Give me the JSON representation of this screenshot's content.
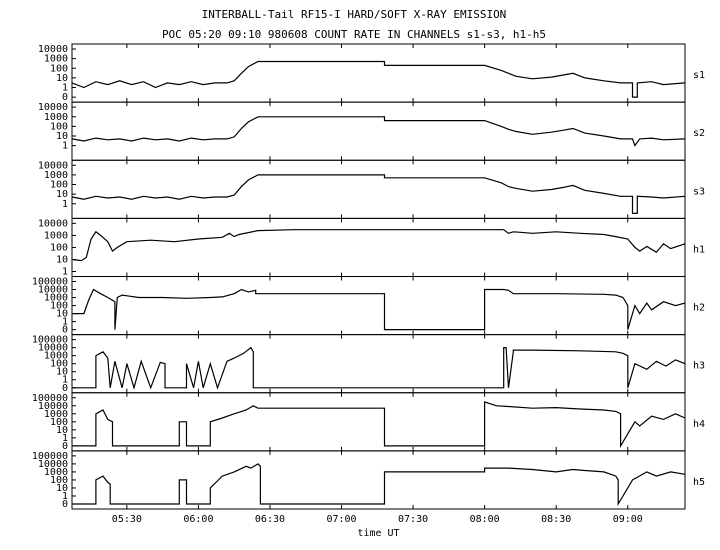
{
  "chart_data": [
    {
      "type": "line",
      "title": "INTERBALL-Tail RF15-I HARD/SOFT X-RAY EMISSION",
      "subtitle": "POC 05:20 09:10 980608  COUNT RATE IN CHANNELS s1-s3, h1-h5",
      "log_scale": true,
      "xlim": [
        "05:07",
        "09:24"
      ],
      "ylim": [
        0,
        10000
      ],
      "yticks": [
        0,
        1,
        10,
        100,
        1000,
        10000
      ],
      "x": [
        "05:07",
        "05:12",
        "05:17",
        "05:22",
        "05:27",
        "05:32",
        "05:37",
        "05:42",
        "05:47",
        "05:52",
        "05:57",
        "06:02",
        "06:07",
        "06:12",
        "06:15",
        "06:18",
        "06:21",
        "06:25",
        "07:18",
        "07:18",
        "08:00",
        "08:07",
        "08:10",
        "08:13",
        "08:20",
        "08:28",
        "08:33",
        "08:37",
        "08:42",
        "08:50",
        "08:57",
        "09:02",
        "09:02",
        "09:04",
        "09:04",
        "09:10",
        "09:15",
        "09:24"
      ],
      "series": [
        {
          "name": "s1",
          "color": "#000000",
          "values": [
            3,
            1,
            4,
            2,
            5,
            2,
            4,
            1,
            3,
            2,
            4,
            2,
            3,
            3,
            5,
            30,
            150,
            500,
            500,
            200,
            200,
            60,
            30,
            15,
            8,
            12,
            20,
            30,
            10,
            5,
            3,
            3,
            0,
            0,
            3,
            4,
            2,
            3
          ]
        }
      ]
    },
    {
      "type": "line",
      "log_scale": true,
      "xlim": [
        "05:07",
        "09:24"
      ],
      "ylim": [
        0,
        10000
      ],
      "yticks": [
        1,
        10,
        100,
        1000,
        10000
      ],
      "x": [
        "05:07",
        "05:12",
        "05:17",
        "05:22",
        "05:27",
        "05:32",
        "05:37",
        "05:42",
        "05:47",
        "05:52",
        "05:57",
        "06:02",
        "06:07",
        "06:12",
        "06:15",
        "06:18",
        "06:21",
        "06:25",
        "07:18",
        "07:18",
        "08:00",
        "08:07",
        "08:10",
        "08:13",
        "08:20",
        "08:28",
        "08:33",
        "08:37",
        "08:42",
        "08:50",
        "08:57",
        "09:02",
        "09:03",
        "09:05",
        "09:10",
        "09:15",
        "09:24"
      ],
      "series": [
        {
          "name": "s2",
          "color": "#000000",
          "values": [
            5,
            3,
            6,
            4,
            5,
            3,
            6,
            4,
            5,
            3,
            6,
            4,
            5,
            5,
            8,
            60,
            300,
            1000,
            1000,
            400,
            400,
            100,
            50,
            30,
            15,
            25,
            40,
            60,
            20,
            10,
            5,
            5,
            1,
            5,
            6,
            4,
            5
          ]
        }
      ]
    },
    {
      "type": "line",
      "log_scale": true,
      "xlim": [
        "05:07",
        "09:24"
      ],
      "ylim": [
        0,
        10000
      ],
      "yticks": [
        1,
        10,
        100,
        1000,
        10000
      ],
      "x": [
        "05:07",
        "05:12",
        "05:17",
        "05:22",
        "05:27",
        "05:32",
        "05:37",
        "05:42",
        "05:47",
        "05:52",
        "05:57",
        "06:02",
        "06:07",
        "06:12",
        "06:15",
        "06:18",
        "06:21",
        "06:25",
        "07:18",
        "07:18",
        "08:00",
        "08:07",
        "08:10",
        "08:13",
        "08:20",
        "08:28",
        "08:33",
        "08:37",
        "08:42",
        "08:50",
        "08:57",
        "09:02",
        "09:02",
        "09:04",
        "09:04",
        "09:10",
        "09:15",
        "09:24"
      ],
      "series": [
        {
          "name": "s3",
          "color": "#000000",
          "values": [
            5,
            3,
            6,
            4,
            5,
            3,
            6,
            4,
            5,
            3,
            6,
            4,
            5,
            5,
            8,
            60,
            300,
            1000,
            1000,
            500,
            500,
            150,
            60,
            40,
            20,
            30,
            50,
            80,
            25,
            12,
            6,
            6,
            0,
            0,
            6,
            5,
            4,
            6
          ]
        }
      ]
    },
    {
      "type": "line",
      "log_scale": true,
      "xlim": [
        "05:07",
        "09:24"
      ],
      "ylim": [
        1,
        10000
      ],
      "yticks": [
        1,
        10,
        100,
        1000,
        10000
      ],
      "x": [
        "05:07",
        "05:11",
        "05:13",
        "05:15",
        "05:17",
        "05:19",
        "05:22",
        "05:24",
        "05:26",
        "05:30",
        "05:40",
        "05:50",
        "06:00",
        "06:10",
        "06:13",
        "06:15",
        "06:17",
        "06:25",
        "06:40",
        "07:00",
        "07:30",
        "08:00",
        "08:08",
        "08:10",
        "08:12",
        "08:15",
        "08:20",
        "08:30",
        "08:40",
        "08:50",
        "08:55",
        "09:00",
        "09:03",
        "09:05",
        "09:08",
        "09:12",
        "09:15",
        "09:18",
        "09:24"
      ],
      "series": [
        {
          "name": "h1",
          "color": "#000000",
          "values": [
            10,
            8,
            15,
            500,
            2000,
            1000,
            300,
            50,
            100,
            300,
            400,
            300,
            500,
            700,
            1500,
            800,
            1200,
            2500,
            3000,
            3000,
            3000,
            3000,
            3000,
            1500,
            2000,
            1800,
            1500,
            2000,
            1500,
            1200,
            800,
            500,
            100,
            50,
            120,
            40,
            200,
            80,
            200
          ]
        }
      ]
    },
    {
      "type": "line",
      "log_scale": true,
      "xlim": [
        "05:07",
        "09:24"
      ],
      "ylim": [
        0,
        100000
      ],
      "yticks": [
        0,
        1,
        10,
        100,
        1000,
        10000,
        100000
      ],
      "x": [
        "05:07",
        "05:12",
        "05:14",
        "05:16",
        "05:19",
        "05:22",
        "05:25",
        "05:25",
        "05:26",
        "05:28",
        "05:35",
        "05:45",
        "05:55",
        "06:05",
        "06:10",
        "06:15",
        "06:18",
        "06:21",
        "06:24",
        "06:24",
        "07:18",
        "07:18",
        "08:00",
        "08:00",
        "08:08",
        "08:10",
        "08:12",
        "08:30",
        "08:50",
        "08:55",
        "08:58",
        "09:00",
        "09:00",
        "09:03",
        "09:05",
        "09:08",
        "09:10",
        "09:15",
        "09:20",
        "09:24"
      ],
      "series": [
        {
          "name": "h2",
          "color": "#000000",
          "values": [
            10,
            10,
            500,
            10000,
            3000,
            1000,
            300,
            0,
            1000,
            2000,
            1000,
            1000,
            800,
            1000,
            1200,
            3000,
            10000,
            5000,
            8000,
            3000,
            3000,
            0,
            0,
            10000,
            10000,
            8000,
            3000,
            3000,
            2500,
            2000,
            1000,
            100,
            0,
            100,
            10,
            200,
            30,
            300,
            100,
            200
          ]
        }
      ]
    },
    {
      "type": "line",
      "log_scale": true,
      "xlim": [
        "05:07",
        "09:24"
      ],
      "ylim": [
        0,
        100000
      ],
      "yticks": [
        0,
        1,
        10,
        100,
        1000,
        10000,
        100000
      ],
      "x": [
        "05:07",
        "05:17",
        "05:17",
        "05:20",
        "05:22",
        "05:23",
        "05:25",
        "05:28",
        "05:30",
        "05:33",
        "05:36",
        "05:40",
        "05:44",
        "05:46",
        "05:46",
        "05:55",
        "05:55",
        "05:58",
        "06:00",
        "06:02",
        "06:05",
        "06:08",
        "06:12",
        "06:15",
        "06:19",
        "06:22",
        "06:23",
        "06:23",
        "08:08",
        "08:08",
        "08:09",
        "08:10",
        "08:12",
        "08:12",
        "08:20",
        "08:40",
        "08:55",
        "08:58",
        "09:00",
        "09:00",
        "09:03",
        "09:08",
        "09:12",
        "09:16",
        "09:20",
        "09:24"
      ],
      "series": [
        {
          "name": "h3",
          "color": "#000000",
          "values": [
            0,
            0,
            1000,
            3000,
            500,
            0,
            200,
            0,
            100,
            0,
            200,
            0,
            150,
            100,
            0,
            0,
            100,
            0,
            200,
            0,
            100,
            0,
            200,
            500,
            2000,
            10000,
            3000,
            0,
            0,
            10000,
            10000,
            0,
            3000,
            5000,
            5000,
            4000,
            3000,
            2000,
            1000,
            0,
            100,
            20,
            200,
            50,
            300,
            100
          ]
        }
      ]
    },
    {
      "type": "line",
      "log_scale": true,
      "xlim": [
        "05:07",
        "09:24"
      ],
      "ylim": [
        0,
        100000
      ],
      "yticks": [
        0,
        1,
        10,
        100,
        1000,
        10000,
        100000
      ],
      "x": [
        "05:07",
        "05:17",
        "05:17",
        "05:20",
        "05:22",
        "05:24",
        "05:24",
        "05:52",
        "05:52",
        "05:55",
        "05:55",
        "06:05",
        "06:05",
        "06:10",
        "06:15",
        "06:20",
        "06:23",
        "06:25",
        "07:18",
        "07:18",
        "08:00",
        "08:00",
        "08:05",
        "08:10",
        "08:20",
        "08:30",
        "08:40",
        "08:50",
        "08:55",
        "08:57",
        "08:57",
        "09:03",
        "09:05",
        "09:10",
        "09:15",
        "09:20",
        "09:24"
      ],
      "series": [
        {
          "name": "h4",
          "color": "#000000",
          "values": [
            0,
            0,
            1000,
            3000,
            200,
            100,
            0,
            0,
            100,
            100,
            0,
            0,
            100,
            300,
            1000,
            3000,
            10000,
            5000,
            5000,
            0,
            0,
            30000,
            10000,
            8000,
            5000,
            6000,
            4000,
            3000,
            2000,
            1000,
            0,
            100,
            30,
            500,
            200,
            1000,
            300
          ]
        }
      ]
    },
    {
      "type": "line",
      "log_scale": true,
      "xlim": [
        "05:07",
        "09:24"
      ],
      "ylim": [
        0,
        100000
      ],
      "yticks": [
        0,
        1,
        10,
        100,
        1000,
        10000,
        100000
      ],
      "xticks": [
        "05:30",
        "06:00",
        "06:30",
        "07:00",
        "07:30",
        "08:00",
        "08:30",
        "09:00"
      ],
      "xlabel": "time UT",
      "x": [
        "05:07",
        "05:17",
        "05:17",
        "05:20",
        "05:22",
        "05:23",
        "05:23",
        "05:52",
        "05:52",
        "05:55",
        "05:55",
        "06:05",
        "06:05",
        "06:10",
        "06:15",
        "06:20",
        "06:22",
        "06:25",
        "06:26",
        "06:26",
        "07:18",
        "07:18",
        "08:00",
        "08:00",
        "08:10",
        "08:20",
        "08:30",
        "08:37",
        "08:42",
        "08:50",
        "08:55",
        "08:56",
        "08:56",
        "09:02",
        "09:08",
        "09:12",
        "09:18",
        "09:24"
      ],
      "series": [
        {
          "name": "h5",
          "color": "#000000",
          "values": [
            0,
            0,
            100,
            300,
            50,
            30,
            0,
            0,
            100,
            100,
            0,
            0,
            10,
            300,
            1000,
            5000,
            3000,
            10000,
            5000,
            0,
            0,
            1000,
            1000,
            3000,
            3000,
            2000,
            1000,
            2000,
            1500,
            1000,
            300,
            100,
            0,
            100,
            1000,
            300,
            1000,
            500
          ]
        }
      ]
    }
  ]
}
